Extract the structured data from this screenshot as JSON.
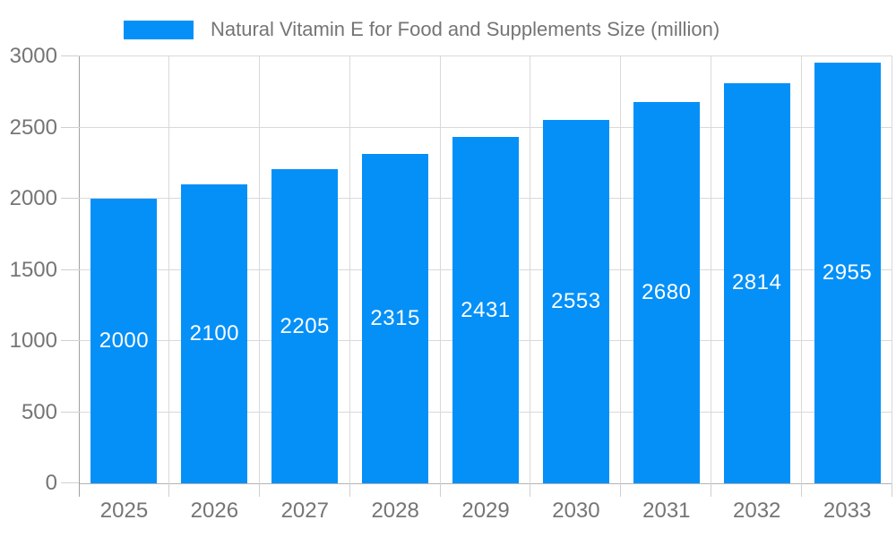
{
  "legend": {
    "label": "Natural Vitamin E for Food and Supplements Size (million)"
  },
  "chart_data": {
    "type": "bar",
    "title": "Natural Vitamin E for Food and Supplements Size (million)",
    "categories": [
      "2025",
      "2026",
      "2027",
      "2028",
      "2029",
      "2030",
      "2031",
      "2032",
      "2033"
    ],
    "values": [
      2000,
      2100,
      2205,
      2315,
      2431,
      2553,
      2680,
      2814,
      2955
    ],
    "xlabel": "",
    "ylabel": "",
    "ylim": [
      0,
      3000
    ],
    "yticks": [
      0,
      500,
      1000,
      1500,
      2000,
      2500,
      3000
    ],
    "grid": true,
    "legend_position": "top",
    "colors": {
      "bar": "#0590f8",
      "value_label": "#ffffff",
      "axis_text": "#757575",
      "gridline": "#d9d9d9",
      "baseline": "#b3b3b3",
      "axis_line": "#a0a0a0",
      "tick": "#cfcfcf"
    }
  }
}
